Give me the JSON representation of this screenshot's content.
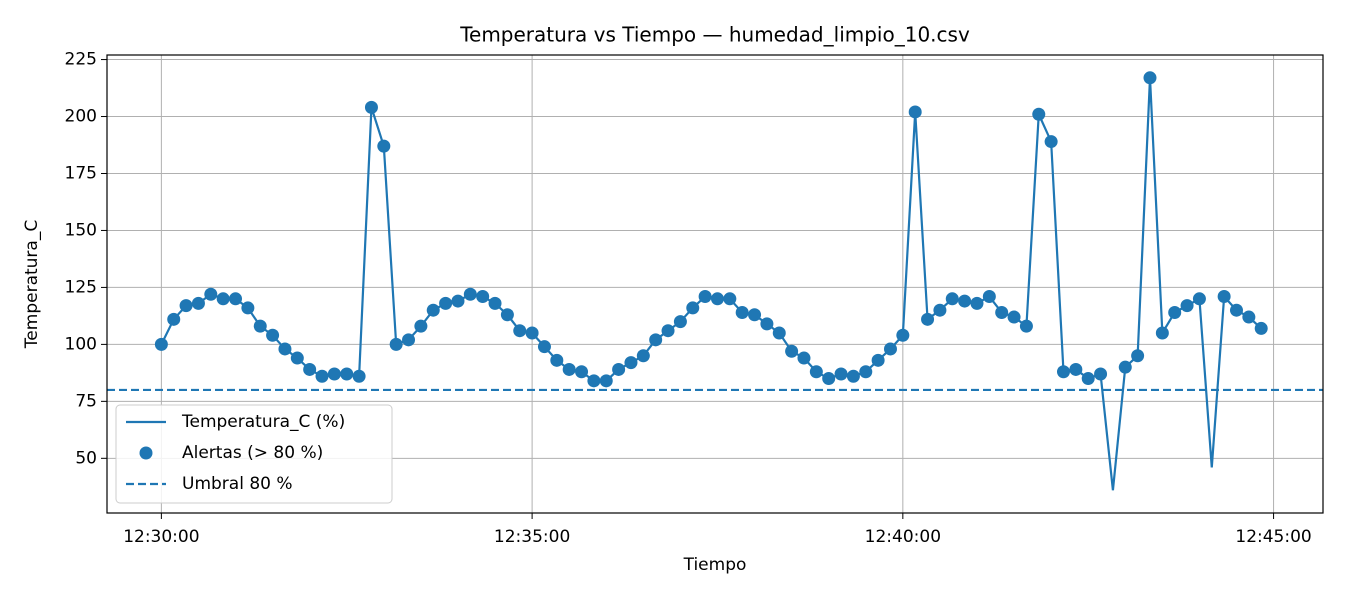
{
  "chart_data": {
    "type": "line",
    "title": "Temperatura vs Tiempo — humedad_limpio_10.csv",
    "xlabel": "Tiempo",
    "ylabel": "Temperatura_C",
    "x": [
      "12:30:00",
      "12:30:10",
      "12:30:20",
      "12:30:30",
      "12:30:40",
      "12:30:50",
      "12:31:00",
      "12:31:10",
      "12:31:20",
      "12:31:30",
      "12:31:40",
      "12:31:50",
      "12:32:00",
      "12:32:10",
      "12:32:20",
      "12:32:30",
      "12:32:40",
      "12:32:50",
      "12:33:00",
      "12:33:10",
      "12:33:20",
      "12:33:30",
      "12:33:40",
      "12:33:50",
      "12:34:00",
      "12:34:10",
      "12:34:20",
      "12:34:30",
      "12:34:40",
      "12:34:50",
      "12:35:00",
      "12:35:10",
      "12:35:20",
      "12:35:30",
      "12:35:40",
      "12:35:50",
      "12:36:00",
      "12:36:10",
      "12:36:20",
      "12:36:30",
      "12:36:40",
      "12:36:50",
      "12:37:00",
      "12:37:10",
      "12:37:20",
      "12:37:30",
      "12:37:40",
      "12:37:50",
      "12:38:00",
      "12:38:10",
      "12:38:20",
      "12:38:30",
      "12:38:40",
      "12:38:50",
      "12:39:00",
      "12:39:10",
      "12:39:20",
      "12:39:30",
      "12:39:40",
      "12:39:50",
      "12:40:00",
      "12:40:10",
      "12:40:20",
      "12:40:30",
      "12:40:40",
      "12:40:50",
      "12:41:00",
      "12:41:10",
      "12:41:20",
      "12:41:30",
      "12:41:40",
      "12:41:50",
      "12:42:00",
      "12:42:10",
      "12:42:20",
      "12:42:30",
      "12:42:40",
      "12:42:50",
      "12:43:00",
      "12:43:10",
      "12:43:20",
      "12:43:30",
      "12:43:40",
      "12:43:50",
      "12:44:00",
      "12:44:10",
      "12:44:20",
      "12:44:30",
      "12:44:40",
      "12:44:50"
    ],
    "series": [
      {
        "name": "Temperatura_C (%)",
        "color": "#1f77b4",
        "values": [
          100,
          111,
          117,
          118,
          122,
          120,
          120,
          116,
          108,
          104,
          98,
          94,
          89,
          86,
          87,
          87,
          86,
          204,
          187,
          100,
          102,
          108,
          115,
          118,
          119,
          122,
          121,
          118,
          113,
          106,
          105,
          99,
          93,
          89,
          88,
          84,
          84,
          89,
          92,
          95,
          102,
          106,
          110,
          116,
          121,
          120,
          120,
          114,
          113,
          109,
          105,
          97,
          94,
          88,
          85,
          87,
          86,
          88,
          93,
          98,
          104,
          202,
          111,
          115,
          120,
          119,
          118,
          121,
          114,
          112,
          108,
          201,
          189,
          88,
          89,
          85,
          87,
          36,
          90,
          95,
          217,
          105,
          114,
          117,
          120,
          46,
          121,
          115,
          112,
          107
        ]
      }
    ],
    "alerts": {
      "name": "Alertas (> 80 %)",
      "color": "#1f77b4"
    },
    "threshold": {
      "name": "Umbral 80 %",
      "value": 80,
      "color": "#1f77b4"
    },
    "xlim": [
      "12:29:16",
      "12:45:40"
    ],
    "xticks": [
      "12:30:00",
      "12:35:00",
      "12:40:00",
      "12:45:00"
    ],
    "ylim": [
      26,
      227
    ],
    "yticks": [
      50,
      75,
      100,
      125,
      150,
      175,
      200,
      225
    ],
    "grid": true,
    "legend": "lower left"
  }
}
